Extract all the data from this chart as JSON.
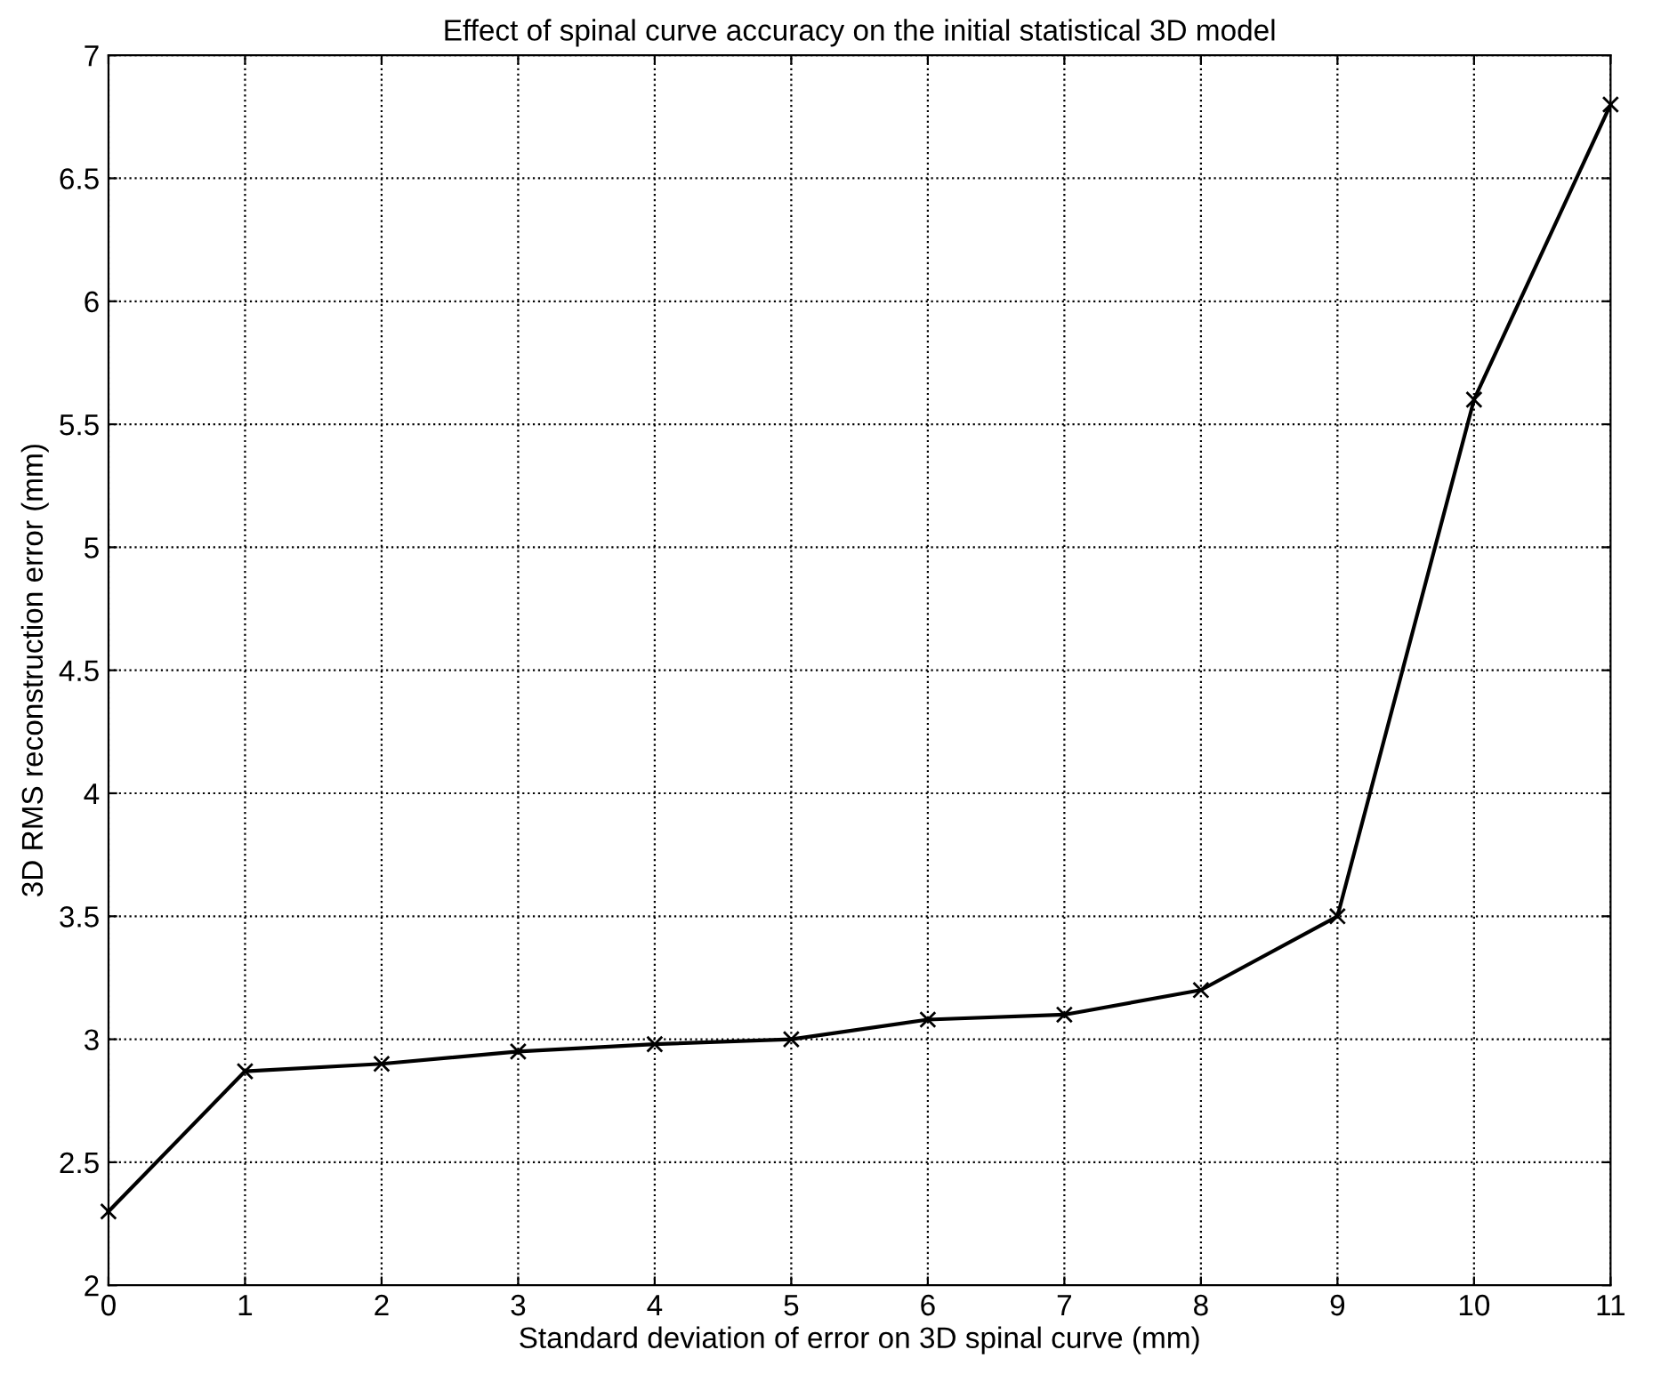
{
  "chart_data": {
    "type": "line",
    "title": "Effect of spinal curve accuracy on the initial statistical 3D model",
    "xlabel": "Standard deviation of error on 3D spinal curve (mm)",
    "ylabel": "3D RMS reconstruction error (mm)",
    "x": [
      0,
      1,
      2,
      3,
      4,
      5,
      6,
      7,
      8,
      9,
      10,
      11
    ],
    "series": [
      {
        "color": "#000000",
        "values": [
          2.3,
          2.87,
          2.9,
          2.95,
          2.98,
          3.0,
          3.08,
          3.1,
          3.2,
          3.5,
          5.6,
          6.8
        ]
      }
    ],
    "xlim": [
      0,
      11
    ],
    "xticks": [
      0,
      1,
      2,
      3,
      4,
      5,
      6,
      7,
      8,
      9,
      10,
      11
    ],
    "ylim": [
      2,
      7
    ],
    "yticks": [
      2,
      2.5,
      3,
      3.5,
      4,
      4.5,
      5,
      5.5,
      6,
      6.5,
      7
    ],
    "grid": true,
    "marker": "cross",
    "line_style": "solid"
  }
}
